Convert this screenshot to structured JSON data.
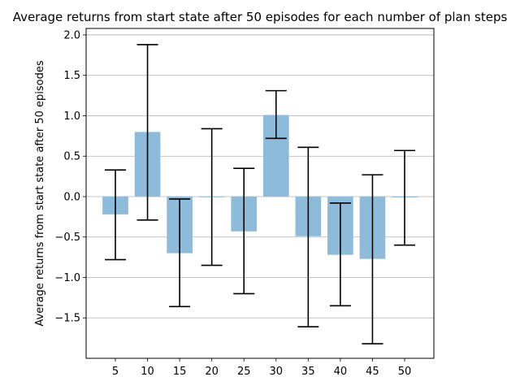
{
  "chart_data": {
    "type": "bar",
    "title": "Average returns from start state after 50 episodes for each number of plan steps",
    "xlabel": "",
    "ylabel": "Average returns from start state after 50 episodes",
    "categories": [
      "5",
      "10",
      "15",
      "20",
      "25",
      "30",
      "35",
      "40",
      "45",
      "50"
    ],
    "series": [
      {
        "values": [
          -0.22,
          0.8,
          -0.7,
          0.0,
          -0.43,
          1.01,
          -0.49,
          -0.72,
          -0.77,
          -0.01
        ],
        "error_low": [
          -0.78,
          -0.29,
          -1.36,
          -0.85,
          -1.2,
          0.72,
          -1.61,
          -1.35,
          -1.82,
          -0.6
        ],
        "error_high": [
          0.33,
          1.88,
          -0.03,
          0.84,
          0.35,
          1.31,
          0.61,
          -0.08,
          0.27,
          0.57
        ]
      }
    ],
    "ylim": [
      -2.0,
      2.08
    ],
    "yticks": [
      -1.5,
      -1.0,
      -0.5,
      0.0,
      0.5,
      1.0,
      1.5,
      2.0
    ],
    "ytick_labels": [
      "−1.5",
      "−1.0",
      "−0.5",
      "0.0",
      "0.5",
      "1.0",
      "1.5",
      "2.0"
    ],
    "grid": "y",
    "bar_color": "#8fbbdb",
    "error_color": "#000000",
    "grid_color": "#b0b0b0"
  }
}
